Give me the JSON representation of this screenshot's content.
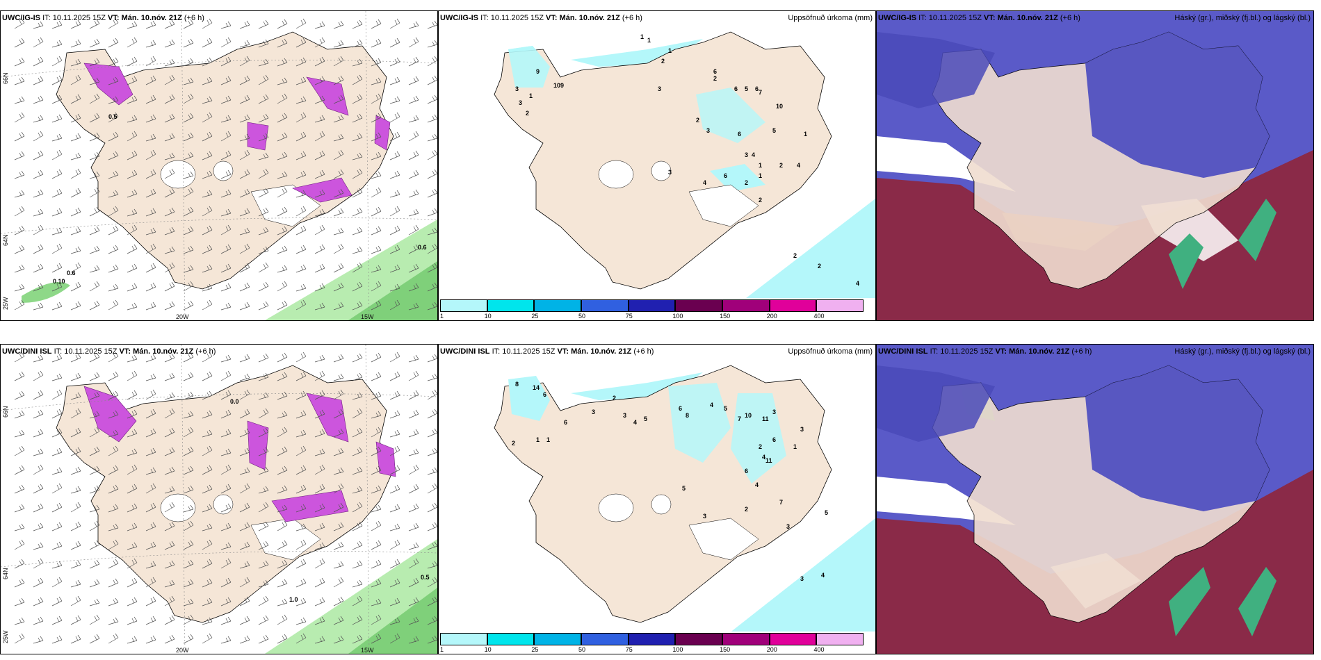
{
  "rows": [
    {
      "model": "UWC/IG-IS",
      "it": "IT: 10.11.2025 15Z",
      "vt_label": "VT:",
      "vt": "Mán. 10.nóv. 21Z",
      "lead": "(+6 h)",
      "precip_title": "Uppsöfnuð úrkoma (mm)",
      "cloud_title": "Háský (gr.), miðský (fj.bl.) og lágský (bl.)",
      "wind_labels": [
        "0.5",
        "0.6",
        "0.6",
        "0.10"
      ],
      "precip_numbers": [
        "1",
        "1",
        "1",
        "2",
        "3",
        "1",
        "9",
        "10",
        "9",
        "3",
        "2",
        "3",
        "6",
        "2",
        "6",
        "5",
        "6",
        "7",
        "10",
        "2",
        "3",
        "6",
        "3",
        "4",
        "5",
        "1",
        "2",
        "3",
        "4",
        "6",
        "2",
        "1",
        "4",
        "2",
        "1",
        "2",
        "2",
        "4"
      ]
    },
    {
      "model": "UWC/DINI ISL",
      "it": "IT: 10.11.2025 15Z",
      "vt_label": "VT:",
      "vt": "Mán. 10.nóv. 21Z",
      "lead": "(+6 h)",
      "precip_title": "Uppsöfnuð úrkoma (mm)",
      "cloud_title": "Háský (gr.), miðský (fj.bl.) og lágský (bl.)",
      "wind_labels": [
        "0.0",
        "0.5",
        "1.0"
      ],
      "precip_numbers": [
        "8",
        "14",
        "6",
        "6",
        "2",
        "1",
        "1",
        "3",
        "2",
        "3",
        "4",
        "5",
        "6",
        "8",
        "4",
        "5",
        "7",
        "10",
        "11",
        "3",
        "6",
        "2",
        "4",
        "11",
        "3",
        "1",
        "4",
        "6",
        "2",
        "7",
        "3",
        "5",
        "3",
        "5",
        "4",
        "3"
      ]
    }
  ],
  "axis_labels": {
    "lat_66": "66N",
    "lat_64": "64N",
    "lon_25": "25W",
    "lon_20": "20W",
    "lon_15": "15W"
  },
  "colorbar": {
    "ticks": [
      "1",
      "10",
      "25",
      "50",
      "75",
      "100",
      "150",
      "200",
      "400"
    ],
    "colors": [
      "#b4f7fa",
      "#00e5ec",
      "#00b3e6",
      "#3060e0",
      "#2020b0",
      "#6a0050",
      "#a0007a",
      "#e0009a",
      "#f0b0f0"
    ]
  },
  "colors": {
    "land": "#f5e6d7",
    "precip_light": "#b4f7fa",
    "wind_green": "#a8e6a0",
    "magenta": "#cc55dd",
    "high_cloud_blue": "#5050c0",
    "mid_cloud_red": "#8a2040",
    "low_cloud_green": "#40b080"
  }
}
